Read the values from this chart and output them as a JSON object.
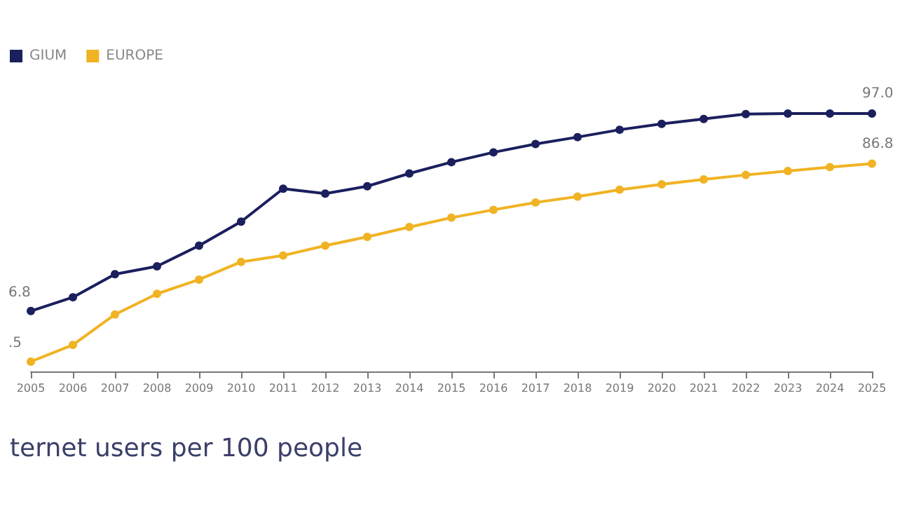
{
  "chart_data": {
    "type": "line",
    "title": "ternet users per 100 people",
    "categories": [
      "2005",
      "2006",
      "2007",
      "2008",
      "2009",
      "2010",
      "2011",
      "2012",
      "2013",
      "2014",
      "2015",
      "2016",
      "2017",
      "2018",
      "2019",
      "2020",
      "2021",
      "2022",
      "2023",
      "2024",
      "2025"
    ],
    "series": [
      {
        "name": "GIUM",
        "color": "#1b1f5e",
        "values": [
          56.8,
          59.6,
          64.3,
          65.9,
          70.1,
          75.0,
          81.7,
          80.7,
          82.2,
          84.8,
          87.1,
          89.1,
          90.8,
          92.2,
          93.7,
          94.9,
          95.9,
          96.9,
          97.0,
          97.0,
          97.0
        ],
        "value_labels": [
          null,
          null,
          null,
          null,
          null,
          null,
          null,
          null,
          null,
          null,
          null,
          null,
          null,
          null,
          null,
          null,
          null,
          null,
          null,
          null,
          "97.0"
        ]
      },
      {
        "name": "EUROPE",
        "color": "#f0b323",
        "values": [
          46.5,
          49.9,
          56.1,
          60.3,
          63.2,
          66.8,
          68.1,
          70.1,
          71.9,
          73.9,
          75.8,
          77.4,
          78.9,
          80.1,
          81.5,
          82.6,
          83.6,
          84.5,
          85.3,
          86.1,
          86.8
        ],
        "value_labels": [
          null,
          null,
          null,
          null,
          null,
          null,
          null,
          null,
          null,
          null,
          null,
          null,
          null,
          null,
          null,
          null,
          null,
          null,
          null,
          null,
          "86.8"
        ]
      }
    ],
    "annotations": [
      "6.8",
      ".5"
    ],
    "tick_labels": "x",
    "legend": "top left",
    "marker": "circle",
    "line_style": "solid",
    "grid": false
  }
}
